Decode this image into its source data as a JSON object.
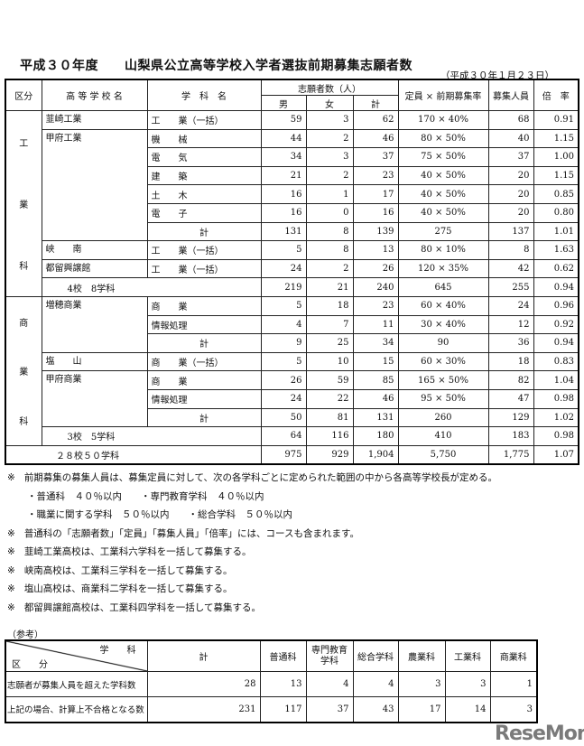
{
  "title": "平成３０年度　　山梨県公立高等学校入学者選抜前期募集志願者数",
  "date": "（平成３０年１月２３日）",
  "headers": {
    "division": "区分",
    "school": "高 等 学 校 名",
    "dept": "学　科　名",
    "applicants": "志願者数（人）",
    "male": "男",
    "female": "女",
    "total": "計",
    "capacity": "定員 × 前期募集率",
    "recruit": "募集人員",
    "ratio": "倍　率"
  },
  "sections": [
    {
      "chars": [
        "工",
        "業",
        "科"
      ],
      "schools": [
        {
          "name": "韮崎工業",
          "rows": [
            {
              "dept": "工　　業（一括）",
              "m": "59",
              "f": "3",
              "t": "62",
              "cap": "170 × 40%",
              "rec": "68",
              "ratio": "0.91"
            }
          ]
        },
        {
          "name": "甲府工業",
          "rows": [
            {
              "dept": "機　　械",
              "m": "44",
              "f": "2",
              "t": "46",
              "cap": "80 × 50%",
              "rec": "40",
              "ratio": "1.15"
            },
            {
              "dept": "電　　気",
              "m": "34",
              "f": "3",
              "t": "37",
              "cap": "75 × 50%",
              "rec": "37",
              "ratio": "1.00"
            },
            {
              "dept": "建　　築",
              "m": "21",
              "f": "2",
              "t": "23",
              "cap": "40 × 50%",
              "rec": "20",
              "ratio": "1.15"
            },
            {
              "dept": "土　　木",
              "m": "16",
              "f": "1",
              "t": "17",
              "cap": "40 × 50%",
              "rec": "20",
              "ratio": "0.85"
            },
            {
              "dept": "電　　子",
              "m": "16",
              "f": "0",
              "t": "16",
              "cap": "40 × 50%",
              "rec": "20",
              "ratio": "0.80"
            },
            {
              "dept": "計",
              "sum": true,
              "m": "131",
              "f": "8",
              "t": "139",
              "cap": "275",
              "rec": "137",
              "ratio": "1.01"
            }
          ]
        },
        {
          "name": "峡　　南",
          "rows": [
            {
              "dept": "工　　業（一括）",
              "m": "5",
              "f": "8",
              "t": "13",
              "cap": "80 × 10%",
              "rec": "8",
              "ratio": "1.63"
            }
          ]
        },
        {
          "name": "都留興譲館",
          "rows": [
            {
              "dept": "工　　業（一括）",
              "m": "24",
              "f": "2",
              "t": "26",
              "cap": "120 × 35%",
              "rec": "42",
              "ratio": "0.62"
            }
          ]
        }
      ],
      "subtotal": {
        "label": "4校　8学科",
        "m": "219",
        "f": "21",
        "t": "240",
        "cap": "645",
        "rec": "255",
        "ratio": "0.94"
      }
    },
    {
      "chars": [
        "商",
        "業",
        "科"
      ],
      "schools": [
        {
          "name": "増穂商業",
          "rows": [
            {
              "dept": "商　　業",
              "m": "5",
              "f": "18",
              "t": "23",
              "cap": "60 × 40%",
              "rec": "24",
              "ratio": "0.96"
            },
            {
              "dept": "情報処理",
              "m": "4",
              "f": "7",
              "t": "11",
              "cap": "30 × 40%",
              "rec": "12",
              "ratio": "0.92"
            },
            {
              "dept": "計",
              "sum": true,
              "m": "9",
              "f": "25",
              "t": "34",
              "cap": "90",
              "rec": "36",
              "ratio": "0.94"
            }
          ]
        },
        {
          "name": "塩　　山",
          "rows": [
            {
              "dept": "商　　業（一括）",
              "m": "5",
              "f": "10",
              "t": "15",
              "cap": "60 × 30%",
              "rec": "18",
              "ratio": "0.83"
            }
          ]
        },
        {
          "name": "甲府商業",
          "rows": [
            {
              "dept": "商　　業",
              "m": "26",
              "f": "59",
              "t": "85",
              "cap": "165 × 50%",
              "rec": "82",
              "ratio": "1.04"
            },
            {
              "dept": "情報処理",
              "m": "24",
              "f": "22",
              "t": "46",
              "cap": "95 × 50%",
              "rec": "47",
              "ratio": "0.98"
            },
            {
              "dept": "計",
              "sum": true,
              "m": "50",
              "f": "81",
              "t": "131",
              "cap": "260",
              "rec": "129",
              "ratio": "1.02"
            }
          ]
        }
      ],
      "subtotal": {
        "label": "3校　5学科",
        "m": "64",
        "f": "116",
        "t": "180",
        "cap": "410",
        "rec": "183",
        "ratio": "0.98"
      }
    }
  ],
  "grand_total": {
    "label": "２８校５０学科",
    "m": "975",
    "f": "929",
    "t": "1,904",
    "cap": "5,750",
    "rec": "1,775",
    "ratio": "1.07"
  },
  "notes": [
    {
      "mark": "※",
      "text": "前期募集の募集人員は、募集定員に対して、次の各学科ごとに定められた範囲の中から各高等学校長が定める。"
    },
    {
      "mark": "",
      "text": "・普通科　４０％以内　　・専門教育学科　４０％以内"
    },
    {
      "mark": "",
      "text": "・職業に関する学科　５０％以内　　・総合学科　５０％以内"
    },
    {
      "mark": "※",
      "text": "普通科の「志願者数」「定員」「募集人員」「倍率」には、コースも含まれます。"
    },
    {
      "mark": "※",
      "text": "韮崎工業高校は、工業科六学科を一括して募集する。"
    },
    {
      "mark": "※",
      "text": "峡南高校は、工業科三学科を一括して募集する。"
    },
    {
      "mark": "※",
      "text": "塩山高校は、商業科二学科を一括して募集する。"
    },
    {
      "mark": "※",
      "text": "都留興譲館高校は、工業科四学科を一括して募集する。"
    }
  ],
  "reference": {
    "label": "（参考）",
    "corner_top": "学　　科",
    "corner_bottom": "区　　分",
    "columns": [
      "計",
      "普通科",
      "専門教育学科",
      "総合学科",
      "農業科",
      "工業科",
      "商業科"
    ],
    "rows": [
      {
        "label": "志願者が募集人員を超えた学科数",
        "values": [
          "28",
          "13",
          "4",
          "4",
          "3",
          "3",
          "1"
        ]
      },
      {
        "label": "上記の場合、計算上不合格となる数",
        "values": [
          "231",
          "117",
          "37",
          "43",
          "17",
          "14",
          "3"
        ]
      }
    ]
  },
  "logo": "ReseMom"
}
